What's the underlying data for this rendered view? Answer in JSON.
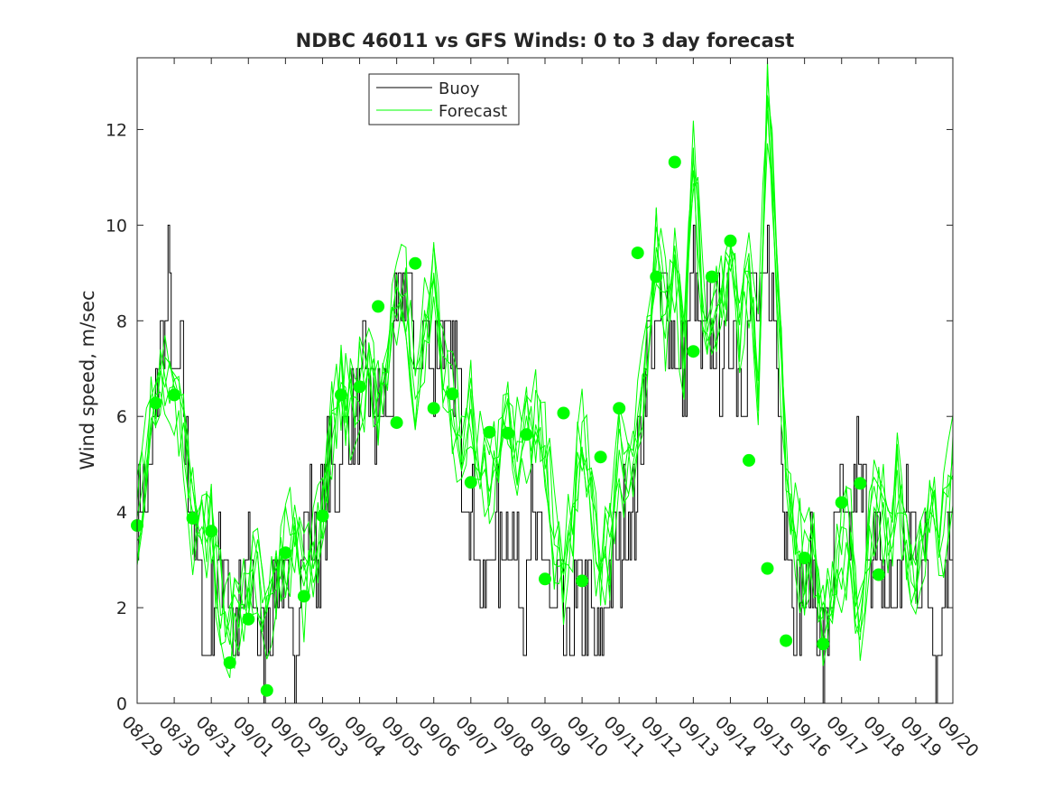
{
  "chart_data": {
    "type": "line",
    "title": "NDBC 46011 vs GFS Winds: 0 to 3 day forecast",
    "xlabel": "",
    "ylabel": "Wind speed, m/sec",
    "xlim": [
      0,
      22
    ],
    "ylim": [
      0,
      13.5
    ],
    "yticks": [
      0,
      2,
      4,
      6,
      8,
      10,
      12
    ],
    "xtick_labels": [
      "08/29",
      "08/30",
      "08/31",
      "09/01",
      "09/02",
      "09/03",
      "09/04",
      "09/05",
      "09/06",
      "09/07",
      "09/08",
      "09/09",
      "09/10",
      "09/11",
      "09/12",
      "09/13",
      "09/14",
      "09/15",
      "09/16",
      "09/17",
      "09/18",
      "09/19",
      "09/20"
    ],
    "legend": {
      "position": "top-center",
      "entries": [
        "Buoy",
        "Forecast"
      ]
    },
    "colors": {
      "buoy": "#000000",
      "forecast": "#00ff00",
      "axis": "#262626"
    },
    "buoy_anchors": [
      [
        0,
        4.5
      ],
      [
        0.25,
        4
      ],
      [
        0.4,
        5
      ],
      [
        0.6,
        7
      ],
      [
        0.75,
        8
      ],
      [
        0.85,
        9
      ],
      [
        1,
        6
      ],
      [
        1.2,
        7
      ],
      [
        1.35,
        5
      ],
      [
        1.5,
        4
      ],
      [
        1.65,
        3
      ],
      [
        1.85,
        1
      ],
      [
        2,
        2
      ],
      [
        2.2,
        3
      ],
      [
        2.4,
        3
      ],
      [
        2.6,
        1
      ],
      [
        2.8,
        2
      ],
      [
        3,
        3
      ],
      [
        3.2,
        2
      ],
      [
        3.4,
        1
      ],
      [
        3.6,
        2
      ],
      [
        3.8,
        3
      ],
      [
        4,
        2
      ],
      [
        4.2,
        1
      ],
      [
        4.4,
        3
      ],
      [
        4.6,
        4
      ],
      [
        4.8,
        3
      ],
      [
        5,
        4
      ],
      [
        5.2,
        5
      ],
      [
        5.4,
        5
      ],
      [
        5.6,
        6
      ],
      [
        5.8,
        6
      ],
      [
        6,
        6
      ],
      [
        6.2,
        7
      ],
      [
        6.4,
        6
      ],
      [
        6.6,
        6
      ],
      [
        6.8,
        6
      ],
      [
        7,
        8
      ],
      [
        7.2,
        9
      ],
      [
        7.4,
        8
      ],
      [
        7.6,
        7
      ],
      [
        7.8,
        8
      ],
      [
        8,
        7
      ],
      [
        8.2,
        8
      ],
      [
        8.4,
        7
      ],
      [
        8.6,
        7
      ],
      [
        8.8,
        5
      ],
      [
        9,
        4
      ],
      [
        9.2,
        3
      ],
      [
        9.4,
        2
      ],
      [
        9.6,
        4
      ],
      [
        9.8,
        3
      ],
      [
        10,
        4
      ],
      [
        10.2,
        3
      ],
      [
        10.4,
        2
      ],
      [
        10.6,
        4
      ],
      [
        10.8,
        3
      ],
      [
        11,
        3
      ],
      [
        11.2,
        2
      ],
      [
        11.4,
        2
      ],
      [
        11.6,
        1
      ],
      [
        11.8,
        2
      ],
      [
        12,
        2
      ],
      [
        12.2,
        2
      ],
      [
        12.4,
        1
      ],
      [
        12.6,
        2
      ],
      [
        12.8,
        3
      ],
      [
        13,
        3
      ],
      [
        13.2,
        4
      ],
      [
        13.4,
        4
      ],
      [
        13.6,
        6
      ],
      [
        13.8,
        8
      ],
      [
        14,
        7
      ],
      [
        14.2,
        9
      ],
      [
        14.4,
        8
      ],
      [
        14.6,
        7
      ],
      [
        14.8,
        7
      ],
      [
        15,
        9
      ],
      [
        15.2,
        7
      ],
      [
        15.4,
        8
      ],
      [
        15.6,
        8
      ],
      [
        15.8,
        7
      ],
      [
        16,
        8
      ],
      [
        16.2,
        7
      ],
      [
        16.4,
        7
      ],
      [
        16.6,
        9
      ],
      [
        16.8,
        8
      ],
      [
        17,
        9
      ],
      [
        17.2,
        8
      ],
      [
        17.4,
        5
      ],
      [
        17.6,
        3
      ],
      [
        17.8,
        2
      ],
      [
        18,
        2
      ],
      [
        18.2,
        3
      ],
      [
        18.4,
        1
      ],
      [
        18.6,
        1
      ],
      [
        18.8,
        3
      ],
      [
        19,
        4
      ],
      [
        19.2,
        3
      ],
      [
        19.4,
        5
      ],
      [
        19.6,
        4
      ],
      [
        19.8,
        3
      ],
      [
        20,
        3
      ],
      [
        20.2,
        2
      ],
      [
        20.4,
        2
      ],
      [
        20.6,
        3
      ],
      [
        20.8,
        4
      ],
      [
        21,
        3
      ],
      [
        21.2,
        3
      ],
      [
        21.4,
        2
      ],
      [
        21.6,
        1
      ],
      [
        21.8,
        3
      ],
      [
        22,
        4
      ]
    ],
    "forecast_anchors": [
      [
        0,
        3.7
      ],
      [
        0.25,
        5
      ],
      [
        0.5,
        6.3
      ],
      [
        0.75,
        6.8
      ],
      [
        1,
        6.4
      ],
      [
        1.25,
        5.8
      ],
      [
        1.5,
        3.9
      ],
      [
        1.75,
        3.5
      ],
      [
        2,
        3.6
      ],
      [
        2.25,
        2.2
      ],
      [
        2.5,
        1.5
      ],
      [
        2.75,
        1.8
      ],
      [
        3,
        2.5
      ],
      [
        3.25,
        2.8
      ],
      [
        3.5,
        1.8
      ],
      [
        3.75,
        2.4
      ],
      [
        4,
        3.1
      ],
      [
        4.25,
        3.6
      ],
      [
        4.5,
        2.4
      ],
      [
        4.75,
        3.2
      ],
      [
        5,
        4.0
      ],
      [
        5.25,
        5.6
      ],
      [
        5.5,
        6.4
      ],
      [
        5.75,
        6.3
      ],
      [
        6,
        6.6
      ],
      [
        6.25,
        7.0
      ],
      [
        6.5,
        6.4
      ],
      [
        6.75,
        6.8
      ],
      [
        7,
        8.3
      ],
      [
        7.25,
        8.5
      ],
      [
        7.5,
        6.0
      ],
      [
        7.75,
        7.8
      ],
      [
        8,
        9.2
      ],
      [
        8.25,
        7.2
      ],
      [
        8.5,
        6.1
      ],
      [
        8.75,
        5.4
      ],
      [
        9,
        6.4
      ],
      [
        9.25,
        5.0
      ],
      [
        9.5,
        4.6
      ],
      [
        9.75,
        5.3
      ],
      [
        10,
        5.7
      ],
      [
        10.25,
        5.3
      ],
      [
        10.5,
        5.6
      ],
      [
        10.75,
        5.8
      ],
      [
        11,
        5.6
      ],
      [
        11.25,
        3.5
      ],
      [
        11.5,
        2.6
      ],
      [
        11.75,
        4.0
      ],
      [
        12,
        6.0
      ],
      [
        12.25,
        4.4
      ],
      [
        12.5,
        2.6
      ],
      [
        12.75,
        3.3
      ],
      [
        13,
        5.1
      ],
      [
        13.25,
        4.6
      ],
      [
        13.5,
        6.1
      ],
      [
        13.75,
        7.3
      ],
      [
        14,
        9.4
      ],
      [
        14.25,
        8.1
      ],
      [
        14.5,
        8.9
      ],
      [
        14.75,
        7.3
      ],
      [
        15,
        11.3
      ],
      [
        15.25,
        8.5
      ],
      [
        15.5,
        7.4
      ],
      [
        15.75,
        8.6
      ],
      [
        16,
        8.9
      ],
      [
        16.25,
        8.0
      ],
      [
        16.5,
        8.7
      ],
      [
        16.75,
        7.1
      ],
      [
        17,
        12.5
      ],
      [
        17.25,
        9.0
      ],
      [
        17.5,
        5.1
      ],
      [
        17.75,
        3.4
      ],
      [
        18,
        2.8
      ],
      [
        18.25,
        3.2
      ],
      [
        18.5,
        1.3
      ],
      [
        18.75,
        2.6
      ],
      [
        19,
        3.0
      ],
      [
        19.25,
        3.6
      ],
      [
        19.5,
        1.2
      ],
      [
        19.75,
        3.8
      ],
      [
        20,
        4.2
      ],
      [
        20.25,
        3.4
      ],
      [
        20.5,
        4.6
      ],
      [
        20.75,
        3.3
      ],
      [
        21,
        2.7
      ],
      [
        21.25,
        3.6
      ],
      [
        21.5,
        4.1
      ],
      [
        21.75,
        3.6
      ],
      [
        22,
        5.2
      ]
    ],
    "forecast_points": [
      [
        0,
        3.72
      ],
      [
        0.5,
        6.28
      ],
      [
        1,
        6.45
      ],
      [
        1.5,
        3.87
      ],
      [
        2,
        3.6
      ],
      [
        2.5,
        0.85
      ],
      [
        3,
        1.76
      ],
      [
        3.5,
        0.27
      ],
      [
        4,
        3.15
      ],
      [
        4.5,
        2.24
      ],
      [
        5,
        3.92
      ],
      [
        5.5,
        6.45
      ],
      [
        6,
        6.62
      ],
      [
        6.5,
        8.3
      ],
      [
        7,
        5.87
      ],
      [
        7.5,
        9.2
      ],
      [
        8,
        6.17
      ],
      [
        8.5,
        6.47
      ],
      [
        9,
        4.62
      ],
      [
        9.5,
        5.67
      ],
      [
        10,
        5.65
      ],
      [
        10.5,
        5.62
      ],
      [
        11,
        2.6
      ],
      [
        11.5,
        6.07
      ],
      [
        12,
        2.56
      ],
      [
        12.5,
        5.15
      ],
      [
        13,
        6.17
      ],
      [
        13.5,
        9.42
      ],
      [
        14,
        8.92
      ],
      [
        14.5,
        11.32
      ],
      [
        15,
        7.36
      ],
      [
        15.5,
        8.92
      ],
      [
        16,
        9.67
      ],
      [
        16.5,
        5.08
      ],
      [
        17,
        2.82
      ],
      [
        17.5,
        1.31
      ],
      [
        18,
        3.04
      ],
      [
        18.5,
        1.24
      ],
      [
        19,
        4.2
      ],
      [
        19.5,
        4.6
      ],
      [
        20,
        2.69
      ]
    ]
  }
}
